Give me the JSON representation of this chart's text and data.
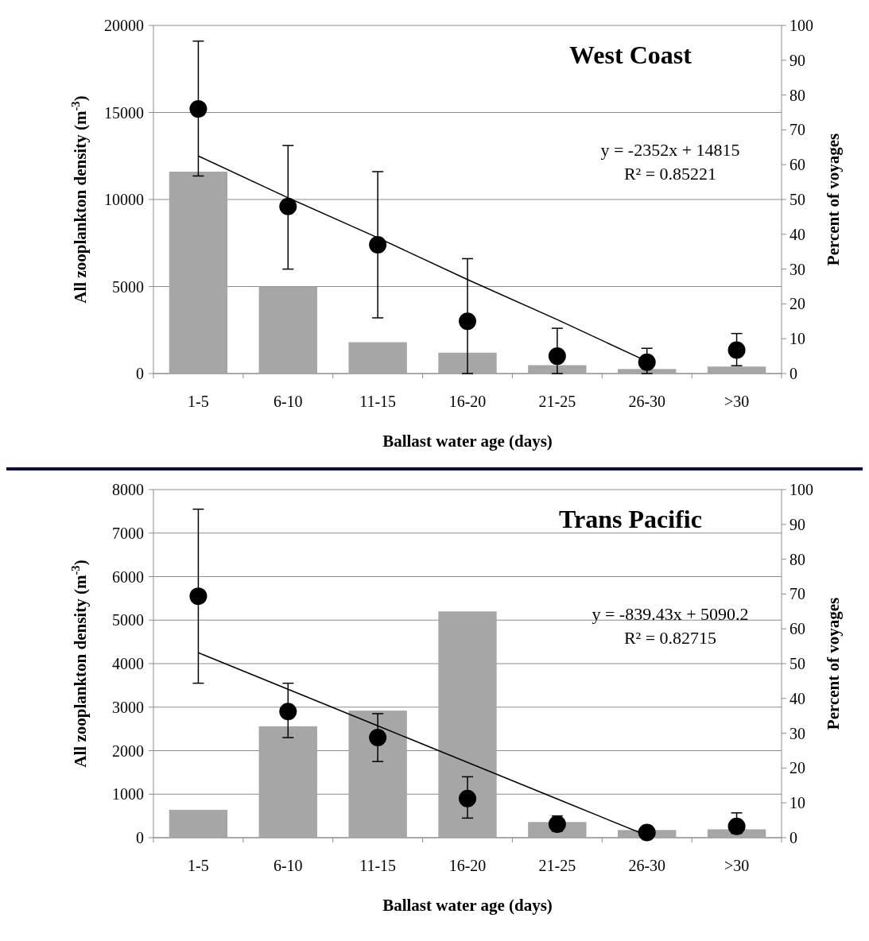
{
  "chart_data": [
    {
      "type": "bar",
      "title": "West Coast",
      "xlabel": "Ballast water age (days)",
      "ylabel": "All zooplankton density (m$^{-3}$)",
      "y2label": "Percent of voyages",
      "categories": [
        "1-5",
        "6-10",
        "11-15",
        "16-20",
        "21-25",
        "26-30",
        ">30"
      ],
      "ylim": [
        0,
        20000
      ],
      "yticks": [
        0,
        5000,
        10000,
        15000,
        20000
      ],
      "y2lim": [
        0,
        100
      ],
      "y2ticks": [
        0,
        10,
        20,
        30,
        40,
        50,
        60,
        70,
        80,
        90,
        100
      ],
      "grid": "y",
      "annotations": [
        "y = -2352x + 14815",
        "R² = 0.85221"
      ],
      "series": [
        {
          "axis": "y2",
          "color": "#a6a6a6",
          "values": [
            58,
            25,
            9,
            6,
            2.4,
            1.3,
            2
          ]
        },
        {
          "type": "scatter",
          "axis": "y",
          "color": "#000000",
          "marker": "circle",
          "values": [
            15200,
            9600,
            7400,
            3000,
            1000,
            650,
            1350
          ],
          "errors": [
            [
              11350,
              19100
            ],
            [
              6000,
              13100
            ],
            [
              3200,
              11600
            ],
            [
              0,
              6600
            ],
            [
              0,
              2600
            ],
            [
              0,
              1450
            ],
            [
              450,
              2300
            ]
          ]
        },
        {
          "type": "line",
          "axis": "y",
          "color": "#000000",
          "line_style": "solid",
          "values": [
            12500,
            10100,
            7800,
            5400,
            3100,
            700,
            null
          ]
        }
      ]
    },
    {
      "type": "bar",
      "title": "Trans Pacific",
      "xlabel": "Ballast water age (days)",
      "ylabel": "All zooplankton density (m$^{-3}$)",
      "y2label": "Percent of voyages",
      "categories": [
        "1-5",
        "6-10",
        "11-15",
        "16-20",
        "21-25",
        "26-30",
        ">30"
      ],
      "ylim": [
        0,
        8000
      ],
      "yticks": [
        0,
        1000,
        2000,
        3000,
        4000,
        5000,
        6000,
        7000,
        8000
      ],
      "y2lim": [
        0,
        100
      ],
      "y2ticks": [
        0,
        10,
        20,
        30,
        40,
        50,
        60,
        70,
        80,
        90,
        100
      ],
      "grid": "y",
      "annotations": [
        "y = -839.43x + 5090.2",
        "R² = 0.82715"
      ],
      "series": [
        {
          "axis": "y2",
          "color": "#a6a6a6",
          "values": [
            8,
            32,
            36.5,
            65,
            4.5,
            2.2,
            2.4
          ]
        },
        {
          "type": "scatter",
          "axis": "y",
          "color": "#000000",
          "marker": "circle",
          "values": [
            5550,
            2900,
            2300,
            900,
            310,
            120,
            260
          ],
          "errors": [
            [
              3550,
              7550
            ],
            [
              2300,
              3550
            ],
            [
              1750,
              2850
            ],
            [
              450,
              1400
            ],
            [
              150,
              500
            ],
            null,
            [
              100,
              570
            ]
          ]
        },
        {
          "type": "line",
          "axis": "y",
          "color": "#000000",
          "line_style": "solid",
          "values": [
            4250,
            3410,
            2570,
            1730,
            890,
            50,
            null
          ]
        }
      ]
    }
  ]
}
